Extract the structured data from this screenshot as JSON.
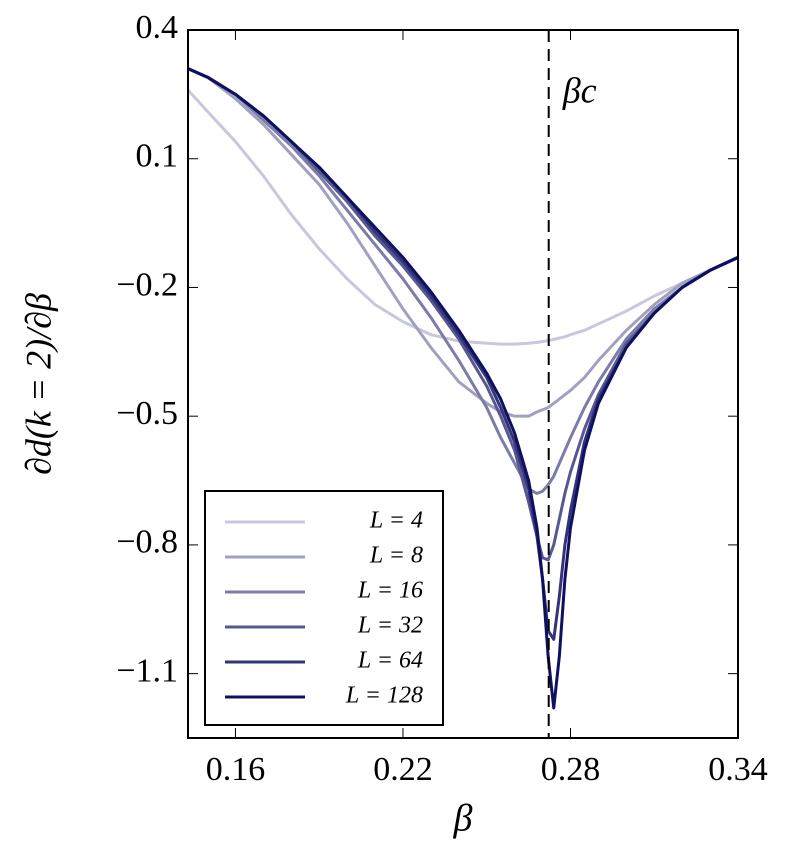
{
  "chart_data": {
    "type": "line",
    "x_label": "β",
    "y_label": "∂d(k = 2)/∂β",
    "x": [
      0.143,
      0.15,
      0.16,
      0.17,
      0.18,
      0.19,
      0.2,
      0.21,
      0.22,
      0.23,
      0.24,
      0.25,
      0.255,
      0.26,
      0.265,
      0.268,
      0.27,
      0.272,
      0.274,
      0.276,
      0.278,
      0.28,
      0.285,
      0.29,
      0.3,
      0.31,
      0.32,
      0.33,
      0.34
    ],
    "series": [
      {
        "name": "L = 4",
        "color": "#c8c8dc",
        "values": [
          0.26,
          0.21,
          0.14,
          0.06,
          -0.03,
          -0.11,
          -0.18,
          -0.24,
          -0.28,
          -0.31,
          -0.325,
          -0.33,
          -0.332,
          -0.332,
          -0.33,
          -0.328,
          -0.326,
          -0.324,
          -0.321,
          -0.318,
          -0.315,
          -0.31,
          -0.3,
          -0.285,
          -0.255,
          -0.22,
          -0.19,
          -0.16,
          -0.13
        ]
      },
      {
        "name": "L = 8",
        "color": "#a0a0c0",
        "values": [
          0.31,
          0.29,
          0.24,
          0.18,
          0.11,
          0.04,
          -0.05,
          -0.15,
          -0.25,
          -0.34,
          -0.42,
          -0.47,
          -0.49,
          -0.5,
          -0.5,
          -0.49,
          -0.485,
          -0.48,
          -0.47,
          -0.46,
          -0.45,
          -0.44,
          -0.41,
          -0.37,
          -0.3,
          -0.24,
          -0.19,
          -0.16,
          -0.13
        ]
      },
      {
        "name": "L = 16",
        "color": "#7c7ca8",
        "values": [
          0.31,
          0.29,
          0.25,
          0.19,
          0.13,
          0.06,
          -0.02,
          -0.1,
          -0.18,
          -0.27,
          -0.37,
          -0.48,
          -0.55,
          -0.61,
          -0.67,
          -0.68,
          -0.675,
          -0.66,
          -0.64,
          -0.61,
          -0.58,
          -0.55,
          -0.48,
          -0.42,
          -0.32,
          -0.25,
          -0.2,
          -0.16,
          -0.13
        ]
      },
      {
        "name": "L = 32",
        "color": "#575791",
        "values": [
          0.31,
          0.29,
          0.25,
          0.2,
          0.14,
          0.07,
          0.0,
          -0.08,
          -0.15,
          -0.23,
          -0.32,
          -0.43,
          -0.5,
          -0.58,
          -0.7,
          -0.78,
          -0.83,
          -0.835,
          -0.8,
          -0.74,
          -0.68,
          -0.63,
          -0.53,
          -0.45,
          -0.33,
          -0.26,
          -0.2,
          -0.16,
          -0.13
        ]
      },
      {
        "name": "L = 64",
        "color": "#33337a",
        "values": [
          0.31,
          0.29,
          0.25,
          0.2,
          0.14,
          0.08,
          0.01,
          -0.07,
          -0.14,
          -0.22,
          -0.31,
          -0.41,
          -0.48,
          -0.56,
          -0.67,
          -0.78,
          -0.88,
          -1.0,
          -1.02,
          -0.92,
          -0.8,
          -0.72,
          -0.56,
          -0.46,
          -0.34,
          -0.26,
          -0.2,
          -0.16,
          -0.13
        ]
      },
      {
        "name": "L = 128",
        "color": "#101060",
        "values": [
          0.31,
          0.29,
          0.25,
          0.2,
          0.14,
          0.08,
          0.01,
          -0.06,
          -0.13,
          -0.21,
          -0.3,
          -0.4,
          -0.46,
          -0.54,
          -0.65,
          -0.76,
          -0.88,
          -1.06,
          -1.18,
          -1.06,
          -0.88,
          -0.76,
          -0.58,
          -0.47,
          -0.34,
          -0.26,
          -0.2,
          -0.16,
          -0.13
        ]
      }
    ],
    "xlim": [
      0.143,
      0.34
    ],
    "ylim": [
      -1.25,
      0.4
    ],
    "xticks": [
      0.16,
      0.22,
      0.28,
      0.34
    ],
    "yticks": [
      {
        "value": -1.1,
        "label": "−1.1"
      },
      {
        "value": -0.8,
        "label": "−0.8"
      },
      {
        "value": -0.5,
        "label": "−0.5"
      },
      {
        "value": -0.2,
        "label": "−0.2"
      },
      0.1,
      0.4
    ],
    "critical_line": {
      "x": 0.2722,
      "label": "βc",
      "color": "#000000"
    },
    "legend": "lower left",
    "grid": false
  }
}
